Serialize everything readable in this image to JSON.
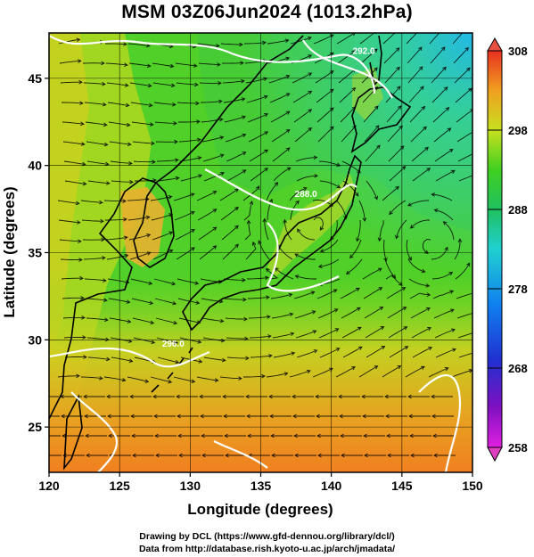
{
  "title": "MSM 03Z06Jun2024 (1013.2hPa)",
  "x_axis": {
    "label": "Longitude (degrees)",
    "range": [
      120,
      150
    ],
    "ticks": [
      120,
      125,
      130,
      135,
      140,
      145,
      150
    ]
  },
  "y_axis": {
    "label": "Latitude  (degrees)",
    "range": [
      22.4,
      47.6
    ],
    "ticks": [
      25,
      30,
      35,
      40,
      45
    ]
  },
  "colorbar": {
    "min": 258,
    "max": 308,
    "ticks": [
      258,
      268,
      278,
      288,
      298,
      308
    ]
  },
  "contour_labels": [
    {
      "text": "292.0",
      "lon": 142.3,
      "lat": 46.4
    },
    {
      "text": "288.0",
      "lon": 138.2,
      "lat": 38.2
    },
    {
      "text": "296.0",
      "lon": 128.8,
      "lat": 29.6
    }
  ],
  "credits": {
    "line1": "Drawing by DCL (https://www.gfd-dennou.org/library/dcl/)",
    "line2": "Data from http://database.rish.kyoto-u.ac.jp/arch/jmadata/"
  },
  "colors": {
    "warm": "#e8a020",
    "mid": "#50d020",
    "cool": "#20b8e0",
    "contour": "#ffffff",
    "coast": "#000000"
  }
}
